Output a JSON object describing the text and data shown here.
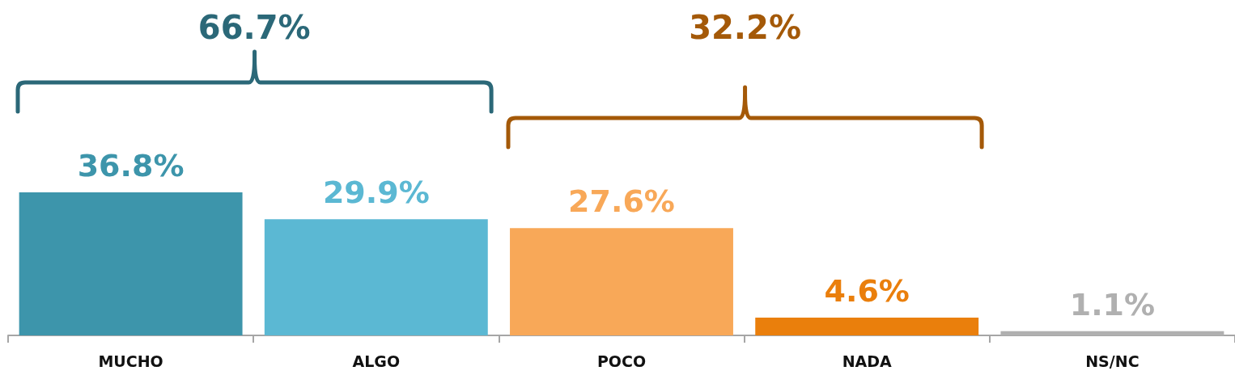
{
  "chart_data": {
    "type": "bar",
    "categories": [
      "MUCHO",
      "ALGO",
      "POCO",
      "NADA",
      "NS/NC"
    ],
    "values": [
      36.8,
      29.9,
      27.6,
      4.6,
      1.1
    ],
    "colors": [
      "#3d95ab",
      "#5bb8d3",
      "#f8a858",
      "#ea7f0c",
      "#b0b0b0"
    ],
    "value_labels": [
      "36.8%",
      "29.9%",
      "27.6%",
      "4.6%",
      "1.1%"
    ],
    "annotations": [
      "66.7%",
      "32.2%"
    ],
    "tick_labels": "x"
  }
}
